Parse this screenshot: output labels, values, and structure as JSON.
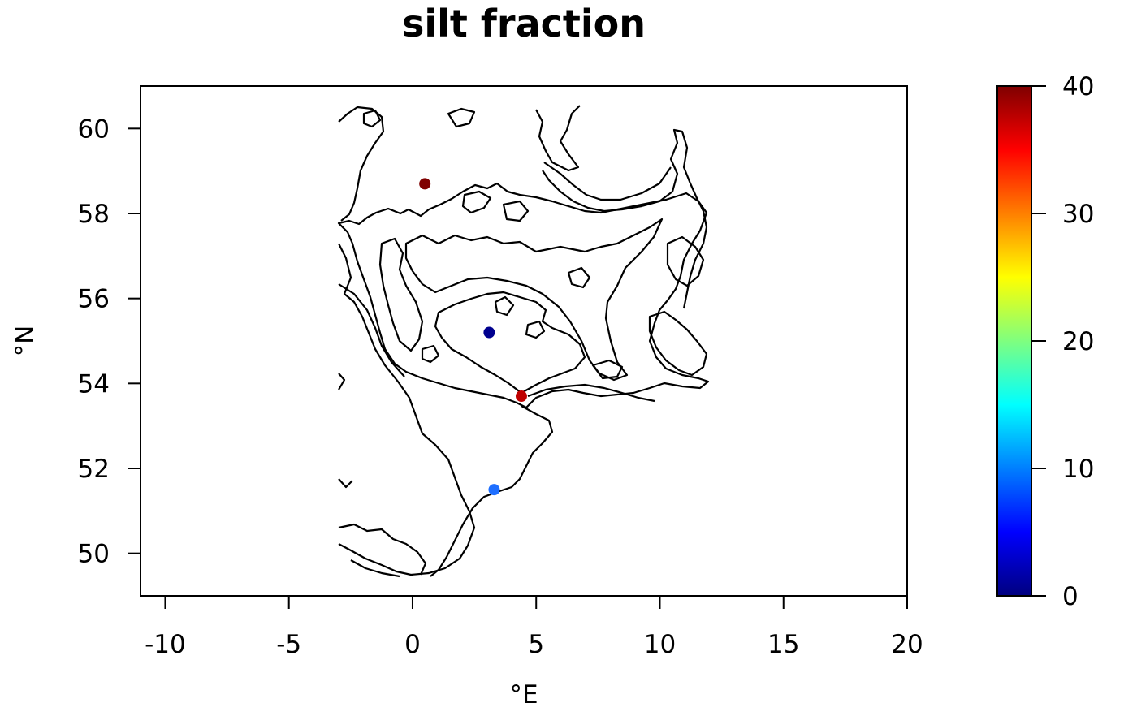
{
  "title": "silt fraction",
  "x_axis": {
    "label": "°E",
    "range": [
      -11,
      20
    ],
    "ticks": [
      -10,
      -5,
      0,
      5,
      10,
      15,
      20
    ],
    "tick_labels": [
      "-10",
      "-5",
      "0",
      "5",
      "10",
      "15",
      "20"
    ]
  },
  "y_axis": {
    "label": "°N",
    "range": [
      49,
      61
    ],
    "ticks": [
      50,
      52,
      54,
      56,
      58,
      60
    ],
    "tick_labels": [
      "50",
      "52",
      "54",
      "56",
      "58",
      "60"
    ]
  },
  "colorbar": {
    "range": [
      0,
      40
    ],
    "ticks": [
      0,
      10,
      20,
      30,
      40
    ],
    "tick_labels": [
      "0",
      "10",
      "20",
      "30",
      "40"
    ],
    "palette": [
      "#00007F",
      "#0000FF",
      "#007FFF",
      "#00FFFF",
      "#7FFF7F",
      "#FFFF00",
      "#FF7F00",
      "#FF0000",
      "#7F0000"
    ]
  },
  "chart_data": {
    "type": "scatter",
    "title": "silt fraction",
    "xlabel": "°E",
    "ylabel": "°N",
    "xlim": [
      -11,
      20
    ],
    "ylim": [
      49,
      61
    ],
    "color_variable_range": [
      0,
      40
    ],
    "points": [
      {
        "lon": 0.5,
        "lat": 58.7,
        "value": 40,
        "color": "#7F0000"
      },
      {
        "lon": 3.1,
        "lat": 55.2,
        "value": 1,
        "color": "#00008F"
      },
      {
        "lon": 4.4,
        "lat": 53.7,
        "value": 36,
        "color": "#BF0000"
      },
      {
        "lon": 3.3,
        "lat": 51.5,
        "value": 10,
        "color": "#1E6FFF"
      }
    ]
  }
}
